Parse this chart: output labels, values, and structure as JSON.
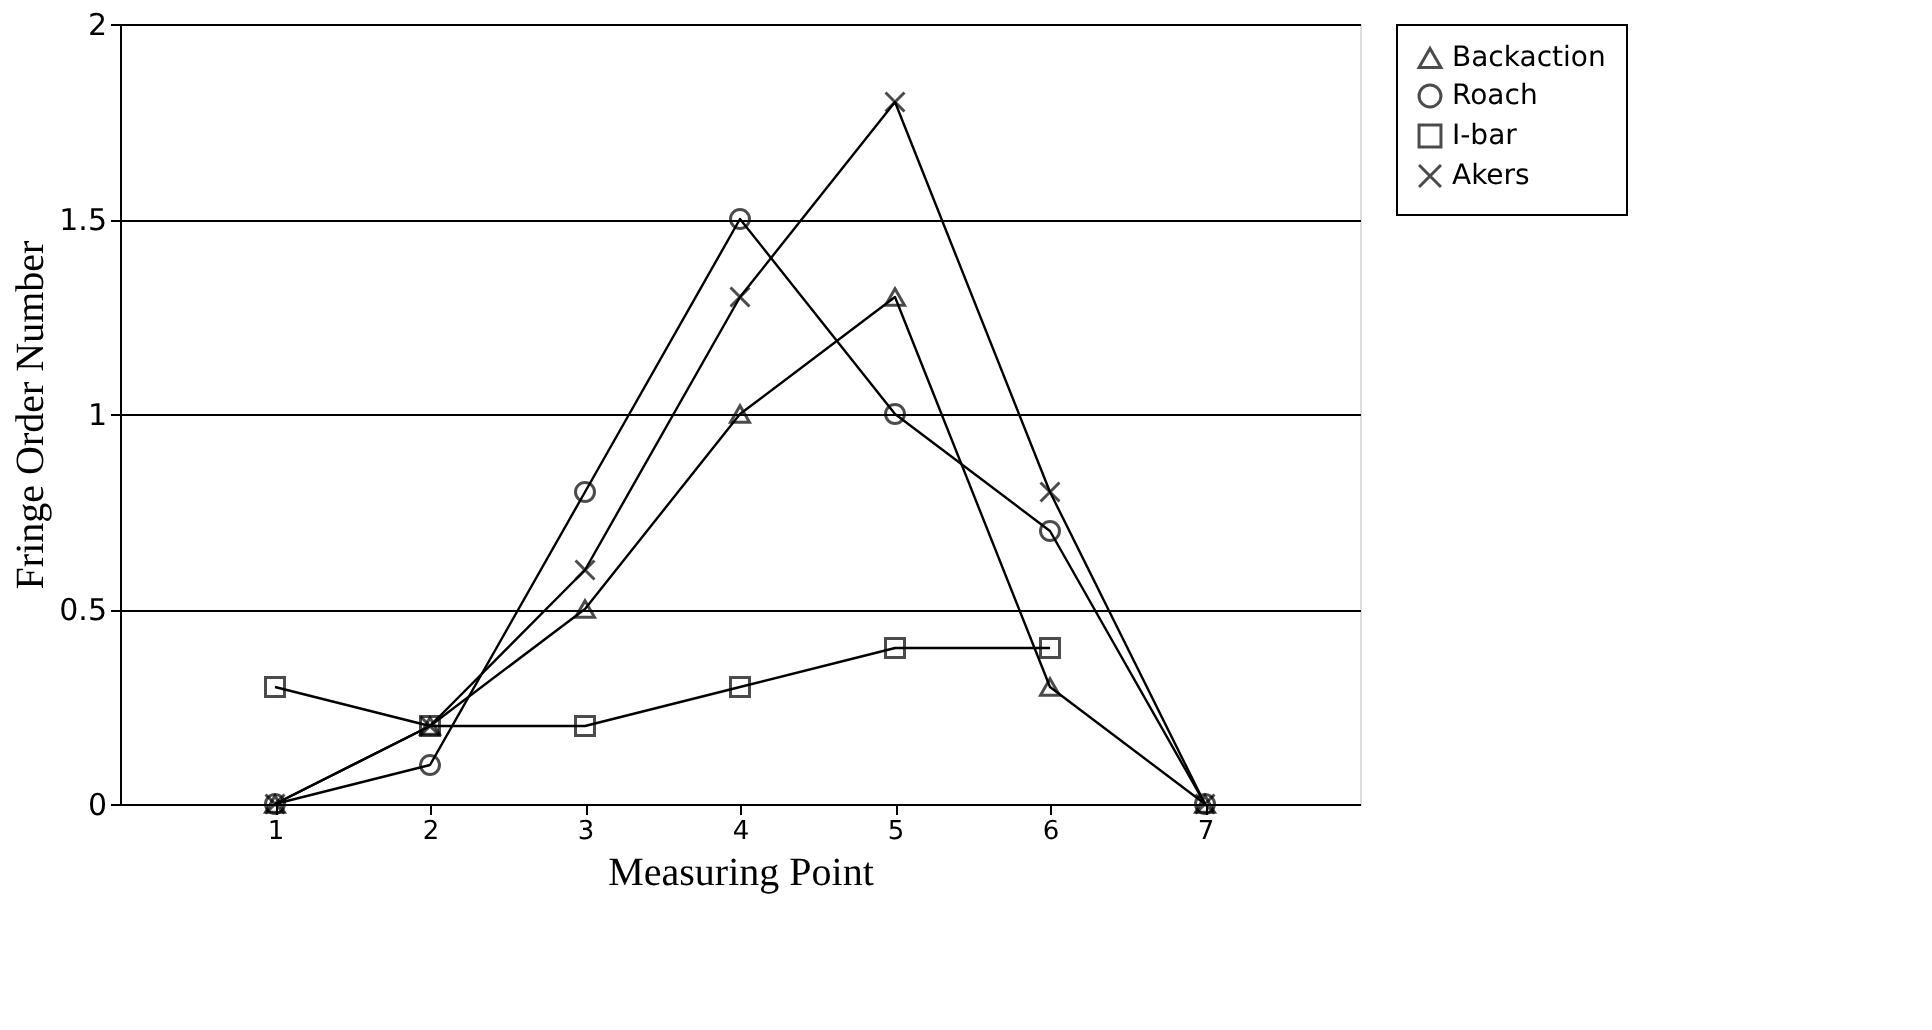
{
  "chart_data": {
    "type": "line",
    "xlabel": "Measuring Point",
    "ylabel": "Fringe Order Number",
    "x": [
      1,
      2,
      3,
      4,
      5,
      6,
      7
    ],
    "xlim": [
      0,
      8
    ],
    "xticks": [
      1,
      2,
      3,
      4,
      5,
      6,
      7
    ],
    "ylim": [
      0,
      2
    ],
    "yticks": [
      0,
      0.5,
      1,
      1.5,
      2
    ],
    "grid": "y",
    "legend": "right",
    "line_style": "solid",
    "series": [
      {
        "name": "Backaction",
        "color": "#000000",
        "marker": "triangle",
        "values": [
          0,
          0.2,
          0.5,
          1.0,
          1.3,
          0.3,
          0
        ]
      },
      {
        "name": "Roach",
        "color": "#000000",
        "marker": "circle",
        "values": [
          0,
          0.1,
          0.8,
          1.5,
          1.0,
          0.7,
          0
        ]
      },
      {
        "name": "I-bar",
        "color": "#000000",
        "marker": "square",
        "values": [
          0.3,
          0.2,
          0.2,
          0.3,
          0.4,
          0.4,
          null
        ]
      },
      {
        "name": "Akers",
        "color": "#000000",
        "marker": "cross",
        "values": [
          0,
          0.2,
          0.6,
          1.3,
          1.8,
          0.8,
          0
        ]
      }
    ]
  }
}
